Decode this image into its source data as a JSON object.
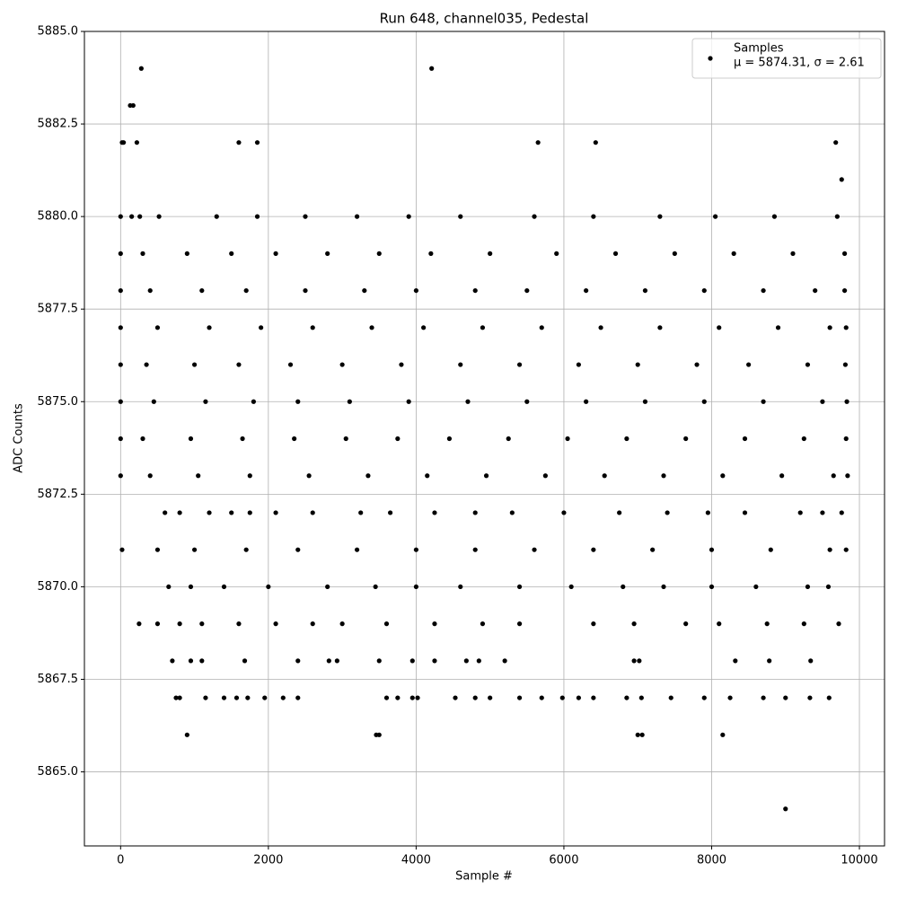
{
  "chart_data": {
    "type": "scatter",
    "title": "Run 648, channel035, Pedestal",
    "x_label": "Sample #",
    "y_label": "ADC Counts",
    "xlim": [
      -490,
      10340
    ],
    "ylim": [
      5863,
      5885
    ],
    "xticks": [
      0,
      2000,
      4000,
      6000,
      8000,
      10000
    ],
    "yticks": [
      {
        "value": 5865,
        "label": "5865.0"
      },
      5867.5,
      {
        "value": 5870,
        "label": "5870.0"
      },
      5872.5,
      {
        "value": 5875,
        "label": "5875.0"
      },
      5877.5,
      {
        "value": 5880,
        "label": "5880.0"
      },
      5882.5,
      {
        "value": 5885,
        "label": "5885.0"
      }
    ],
    "grid": true,
    "legend": "upper right",
    "stats_label": "μ = 5874.31, σ = 2.61",
    "x": [
      0,
      150,
      260,
      520,
      1300,
      1850,
      2500,
      3200,
      3900,
      4600,
      5600,
      6400,
      7300,
      8050,
      8850,
      9700,
      0,
      300,
      900,
      1500,
      2100,
      2800,
      3500,
      4200,
      5000,
      5900,
      6700,
      7500,
      8300,
      9100,
      9800,
      0,
      400,
      1100,
      1700,
      2500,
      3300,
      4000,
      4800,
      5500,
      6300,
      7100,
      7900,
      8700,
      9400,
      9800,
      0,
      500,
      1200,
      1900,
      2600,
      3400,
      4100,
      4900,
      5700,
      6500,
      7300,
      8100,
      8900,
      9600,
      9820,
      0,
      350,
      1000,
      1600,
      2300,
      3000,
      3800,
      4600,
      5400,
      6200,
      7000,
      7800,
      8500,
      9300,
      9810,
      0,
      450,
      1150,
      1800,
      2400,
      3100,
      3900,
      4700,
      5500,
      6300,
      7100,
      7900,
      8700,
      9500,
      9830,
      0,
      300,
      950,
      1650,
      2350,
      3050,
      3750,
      4450,
      5250,
      6050,
      6850,
      7650,
      8450,
      9250,
      9820,
      0,
      400,
      1050,
      1750,
      2550,
      3350,
      4150,
      4950,
      5750,
      6550,
      7350,
      8150,
      8950,
      9650,
      9840,
      600,
      800,
      1200,
      1500,
      1750,
      2100,
      2600,
      3250,
      3650,
      4250,
      4800,
      5300,
      6000,
      6750,
      7400,
      7950,
      8450,
      9200,
      9500,
      9760,
      20,
      500,
      1000,
      1700,
      2400,
      3200,
      4000,
      4800,
      5600,
      6400,
      7200,
      8000,
      8800,
      9600,
      9820,
      650,
      950,
      1400,
      2000,
      2800,
      3450,
      4000,
      4600,
      5400,
      6100,
      6800,
      7350,
      8000,
      8600,
      9300,
      9580,
      250,
      500,
      800,
      1100,
      1600,
      2100,
      2600,
      3000,
      3600,
      4250,
      4900,
      5400,
      6400,
      6950,
      7650,
      8100,
      8750,
      9250,
      9720,
      700,
      950,
      1100,
      1680,
      2400,
      2820,
      2930,
      3500,
      3950,
      4250,
      4680,
      4850,
      5200,
      6950,
      7020,
      8320,
      8780,
      9340,
      750,
      800,
      1150,
      1400,
      1570,
      1720,
      1950,
      2200,
      2400,
      3600,
      3750,
      3950,
      4020,
      4530,
      4800,
      5000,
      5400,
      5700,
      5980,
      6200,
      6400,
      6850,
      7050,
      7450,
      7900,
      8250,
      8700,
      9000,
      9330,
      9590,
      280,
      4210,
      20,
      40,
      220,
      1600,
      1850,
      5650,
      6430,
      9680,
      130,
      170,
      9760,
      900,
      3460,
      3500,
      7000,
      7060,
      8150,
      9000
    ],
    "series": [
      {
        "name": "Samples",
        "color": "#000000",
        "values": [
          5880,
          5880,
          5880,
          5880,
          5880,
          5880,
          5880,
          5880,
          5880,
          5880,
          5880,
          5880,
          5880,
          5880,
          5880,
          5880,
          5879,
          5879,
          5879,
          5879,
          5879,
          5879,
          5879,
          5879,
          5879,
          5879,
          5879,
          5879,
          5879,
          5879,
          5879,
          5878,
          5878,
          5878,
          5878,
          5878,
          5878,
          5878,
          5878,
          5878,
          5878,
          5878,
          5878,
          5878,
          5878,
          5878,
          5877,
          5877,
          5877,
          5877,
          5877,
          5877,
          5877,
          5877,
          5877,
          5877,
          5877,
          5877,
          5877,
          5877,
          5877,
          5876,
          5876,
          5876,
          5876,
          5876,
          5876,
          5876,
          5876,
          5876,
          5876,
          5876,
          5876,
          5876,
          5876,
          5876,
          5875,
          5875,
          5875,
          5875,
          5875,
          5875,
          5875,
          5875,
          5875,
          5875,
          5875,
          5875,
          5875,
          5875,
          5875,
          5874,
          5874,
          5874,
          5874,
          5874,
          5874,
          5874,
          5874,
          5874,
          5874,
          5874,
          5874,
          5874,
          5874,
          5874,
          5873,
          5873,
          5873,
          5873,
          5873,
          5873,
          5873,
          5873,
          5873,
          5873,
          5873,
          5873,
          5873,
          5873,
          5873,
          5872,
          5872,
          5872,
          5872,
          5872,
          5872,
          5872,
          5872,
          5872,
          5872,
          5872,
          5872,
          5872,
          5872,
          5872,
          5872,
          5872,
          5872,
          5872,
          5872,
          5871,
          5871,
          5871,
          5871,
          5871,
          5871,
          5871,
          5871,
          5871,
          5871,
          5871,
          5871,
          5871,
          5871,
          5871,
          5870,
          5870,
          5870,
          5870,
          5870,
          5870,
          5870,
          5870,
          5870,
          5870,
          5870,
          5870,
          5870,
          5870,
          5870,
          5870,
          5869,
          5869,
          5869,
          5869,
          5869,
          5869,
          5869,
          5869,
          5869,
          5869,
          5869,
          5869,
          5869,
          5869,
          5869,
          5869,
          5869,
          5869,
          5869,
          5868,
          5868,
          5868,
          5868,
          5868,
          5868,
          5868,
          5868,
          5868,
          5868,
          5868,
          5868,
          5868,
          5868,
          5868,
          5868,
          5868,
          5868,
          5867,
          5867,
          5867,
          5867,
          5867,
          5867,
          5867,
          5867,
          5867,
          5867,
          5867,
          5867,
          5867,
          5867,
          5867,
          5867,
          5867,
          5867,
          5867,
          5867,
          5867,
          5867,
          5867,
          5867,
          5867,
          5867,
          5867,
          5867,
          5867,
          5867,
          5884,
          5884,
          5882,
          5882,
          5882,
          5882,
          5882,
          5882,
          5882,
          5882,
          5883,
          5883,
          5881,
          5866,
          5866,
          5866,
          5866,
          5866,
          5866,
          5864
        ]
      }
    ]
  }
}
